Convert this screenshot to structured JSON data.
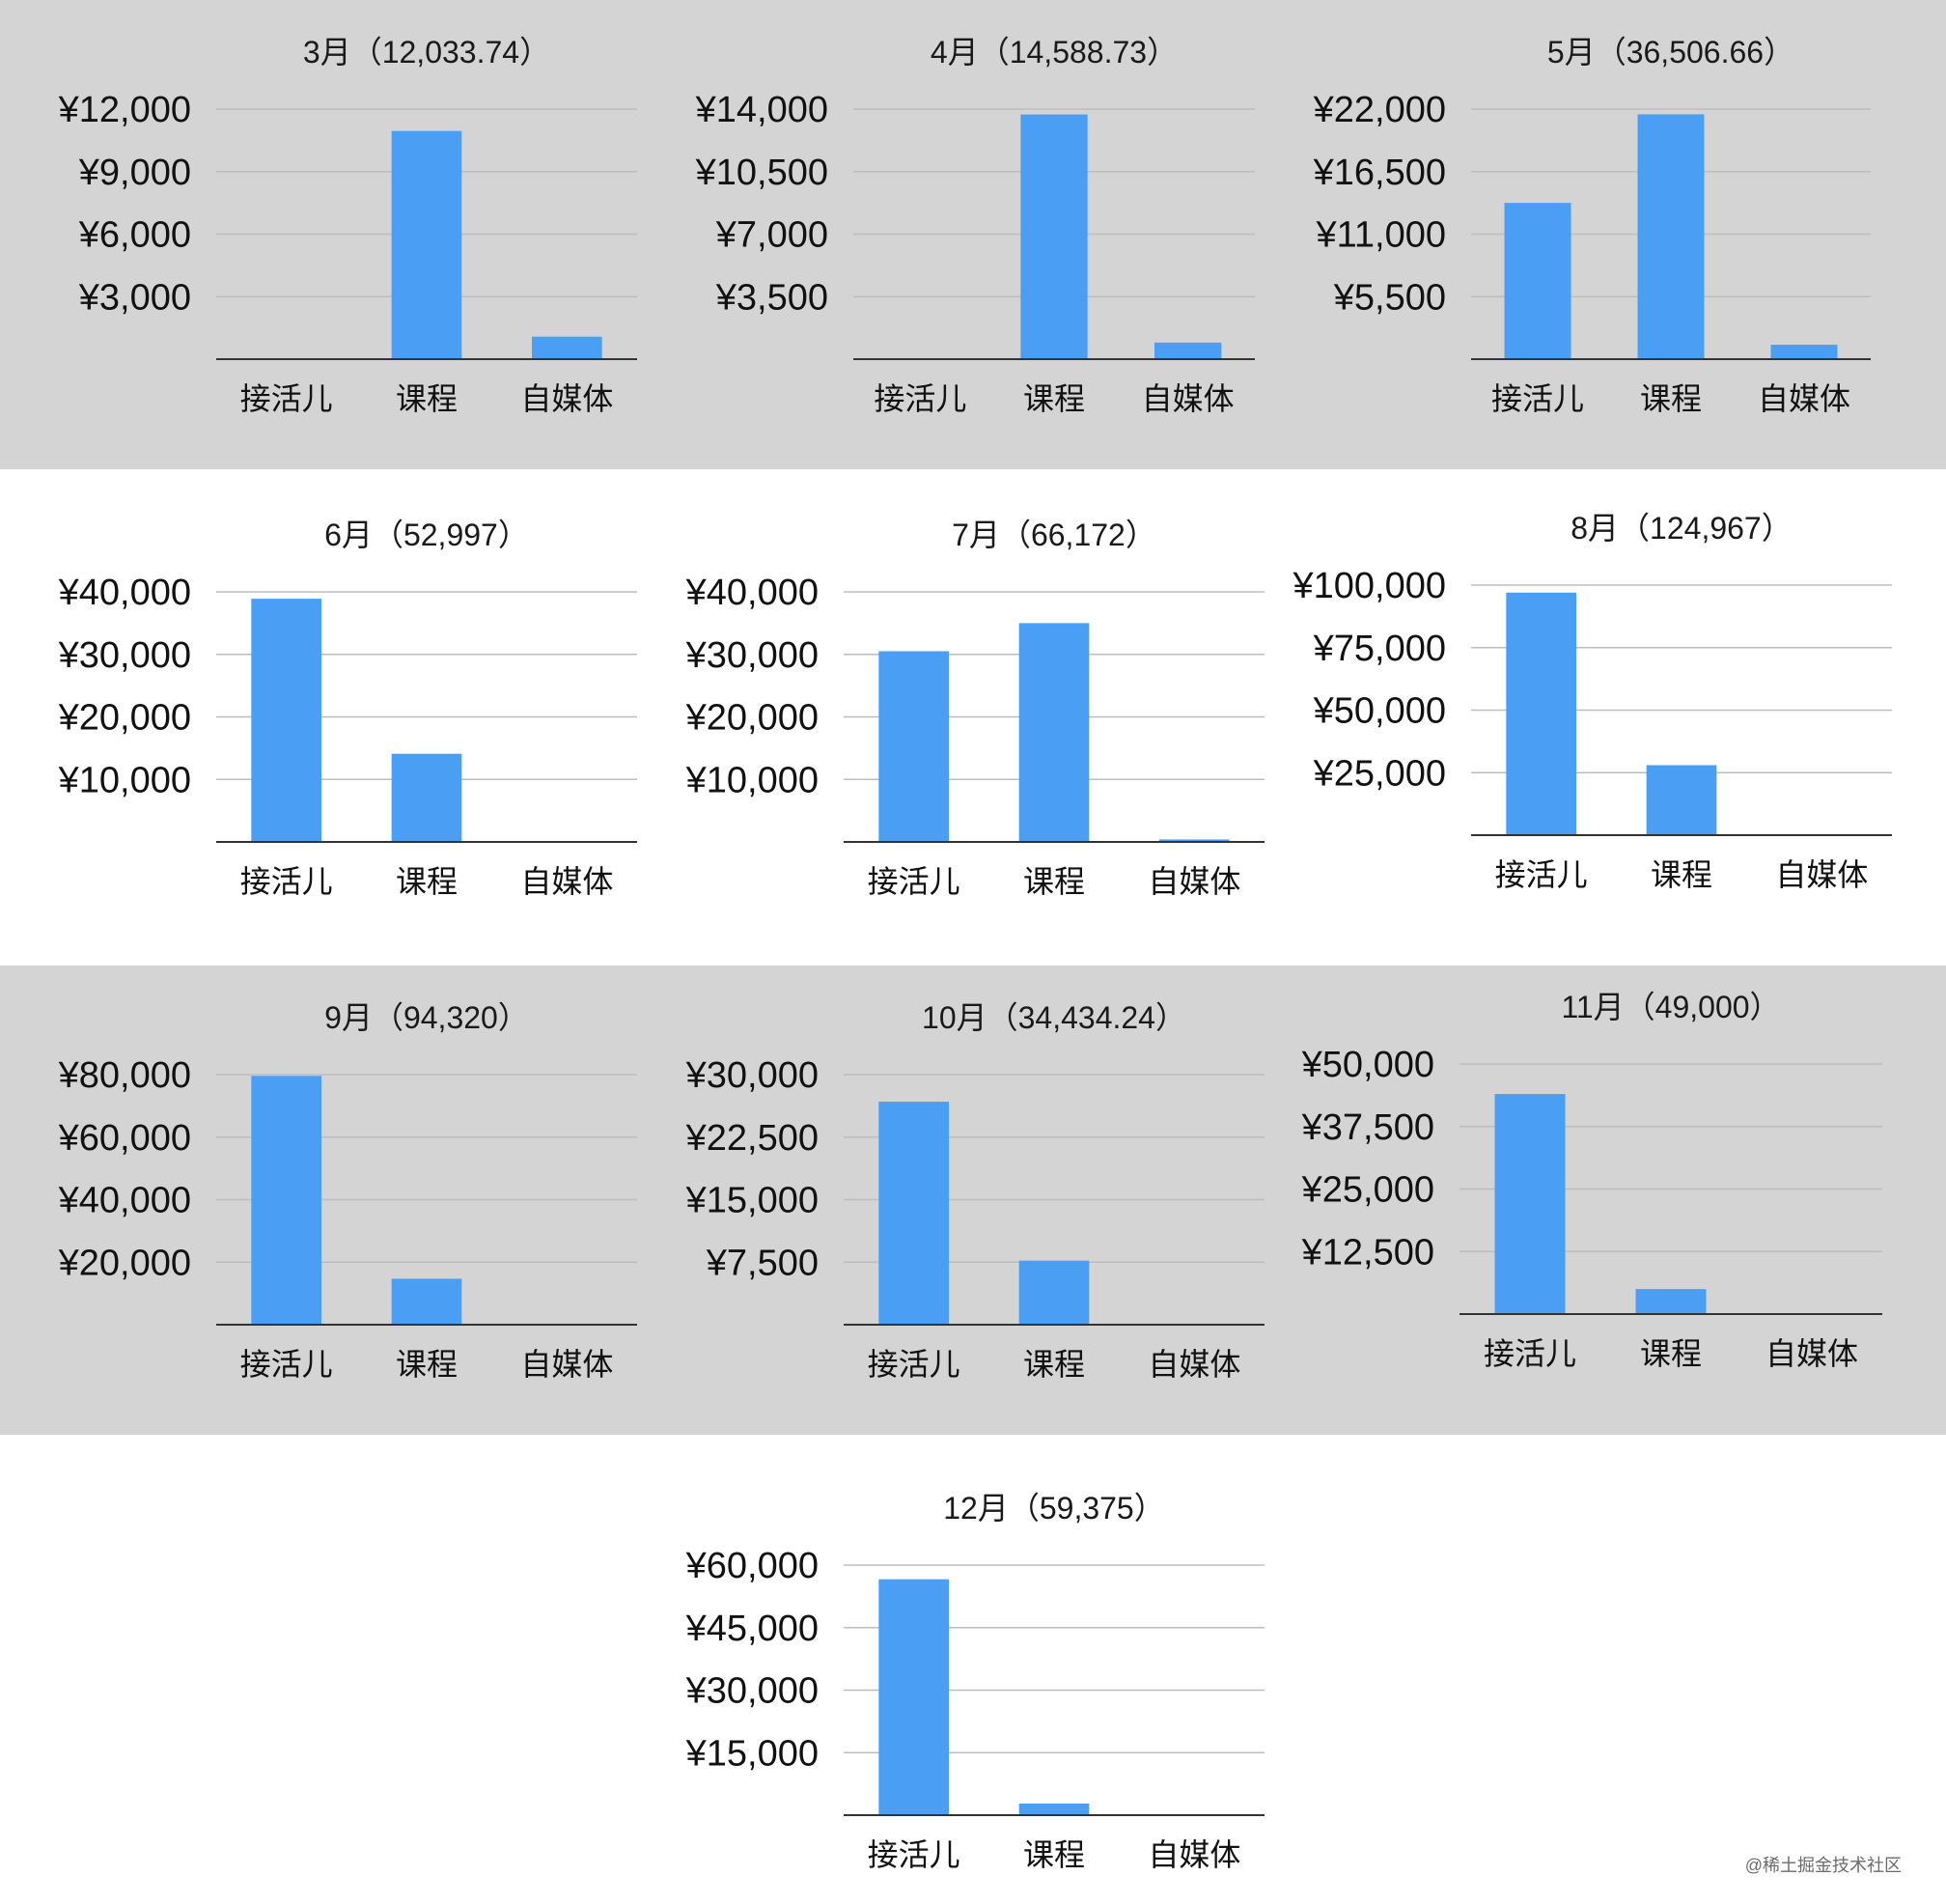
{
  "colors": {
    "bar": "#4a9ff5",
    "grid": "#bdbdbd",
    "axis": "#333333",
    "band_gray": "#d4d4d4",
    "band_white": "#ffffff"
  },
  "watermark": "@稀土掘金技术社区",
  "chart_data": [
    {
      "type": "bar",
      "title": "3月（12,033.74）",
      "categories": [
        "接活儿",
        "课程",
        "自媒体"
      ],
      "values": [
        0,
        10950,
        1080
      ],
      "ylim": [
        0,
        12000
      ],
      "yticks": [
        3000,
        6000,
        9000,
        12000
      ],
      "ytick_labels": [
        "¥3,000",
        "¥6,000",
        "¥9,000",
        "¥12,000"
      ],
      "grid": true
    },
    {
      "type": "bar",
      "title": "4月（14,588.73）",
      "categories": [
        "接活儿",
        "课程",
        "自媒体"
      ],
      "values": [
        0,
        13700,
        930
      ],
      "ylim": [
        0,
        14000
      ],
      "yticks": [
        3500,
        7000,
        10500,
        14000
      ],
      "ytick_labels": [
        "¥3,500",
        "¥7,000",
        "¥10,500",
        "¥14,000"
      ],
      "grid": true
    },
    {
      "type": "bar",
      "title": "5月（36,506.66）",
      "categories": [
        "接活儿",
        "课程",
        "自媒体"
      ],
      "values": [
        13750,
        21540,
        1270
      ],
      "ylim": [
        0,
        22000
      ],
      "yticks": [
        5500,
        11000,
        16500,
        22000
      ],
      "ytick_labels": [
        "¥5,500",
        "¥11,000",
        "¥16,500",
        "¥22,000"
      ],
      "grid": true
    },
    {
      "type": "bar",
      "title": "6月（52,997）",
      "categories": [
        "接活儿",
        "课程",
        "自媒体"
      ],
      "values": [
        38900,
        14100,
        0
      ],
      "ylim": [
        0,
        40000
      ],
      "yticks": [
        10000,
        20000,
        30000,
        40000
      ],
      "ytick_labels": [
        "¥10,000",
        "¥20,000",
        "¥30,000",
        "¥40,000"
      ],
      "grid": true
    },
    {
      "type": "bar",
      "title": "7月（66,172）",
      "categories": [
        "接活儿",
        "课程",
        "自媒体"
      ],
      "values": [
        30500,
        35000,
        400
      ],
      "ylim": [
        0,
        40000
      ],
      "yticks": [
        10000,
        20000,
        30000,
        40000
      ],
      "ytick_labels": [
        "¥10,000",
        "¥20,000",
        "¥30,000",
        "¥40,000"
      ],
      "grid": true
    },
    {
      "type": "bar",
      "title": "8月（124,967）",
      "categories": [
        "接活儿",
        "课程",
        "自媒体"
      ],
      "values": [
        97000,
        28000,
        0
      ],
      "ylim": [
        0,
        100000
      ],
      "yticks": [
        25000,
        50000,
        75000,
        100000
      ],
      "ytick_labels": [
        "¥25,000",
        "¥50,000",
        "¥75,000",
        "¥100,000"
      ],
      "grid": true
    },
    {
      "type": "bar",
      "title": "9月（94,320）",
      "categories": [
        "接活儿",
        "课程",
        "自媒体"
      ],
      "values": [
        79600,
        14700,
        0
      ],
      "ylim": [
        0,
        80000
      ],
      "yticks": [
        20000,
        40000,
        60000,
        80000
      ],
      "ytick_labels": [
        "¥20,000",
        "¥40,000",
        "¥60,000",
        "¥80,000"
      ],
      "grid": true
    },
    {
      "type": "bar",
      "title": "10月（34,434.24）",
      "categories": [
        "接活儿",
        "课程",
        "自媒体"
      ],
      "values": [
        26750,
        7680,
        0
      ],
      "ylim": [
        0,
        30000
      ],
      "yticks": [
        7500,
        15000,
        22500,
        30000
      ],
      "ytick_labels": [
        "¥7,500",
        "¥15,000",
        "¥22,500",
        "¥30,000"
      ],
      "grid": true
    },
    {
      "type": "bar",
      "title": "11月（49,000）",
      "categories": [
        "接活儿",
        "课程",
        "自媒体"
      ],
      "values": [
        44000,
        5000,
        0
      ],
      "ylim": [
        0,
        50000
      ],
      "yticks": [
        12500,
        25000,
        37500,
        50000
      ],
      "ytick_labels": [
        "¥12,500",
        "¥25,000",
        "¥37,500",
        "¥50,000"
      ],
      "grid": true
    },
    {
      "type": "bar",
      "title": "12月（59,375）",
      "categories": [
        "接活儿",
        "课程",
        "自媒体"
      ],
      "values": [
        56600,
        2780,
        0
      ],
      "ylim": [
        0,
        60000
      ],
      "yticks": [
        15000,
        30000,
        45000,
        60000
      ],
      "ytick_labels": [
        "¥15,000",
        "¥30,000",
        "¥45,000",
        "¥60,000"
      ],
      "grid": true
    }
  ]
}
